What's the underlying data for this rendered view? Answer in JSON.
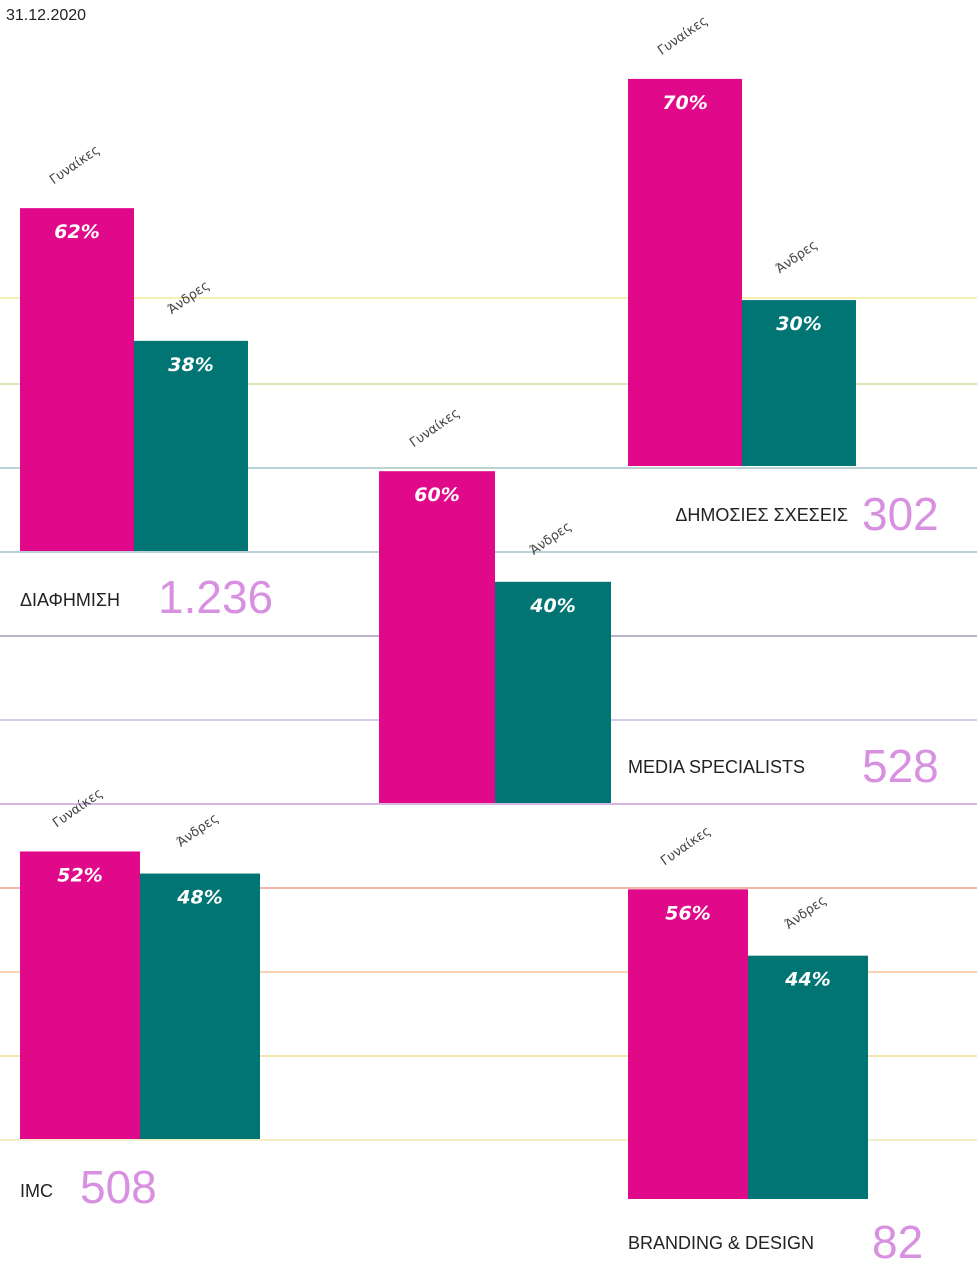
{
  "date": "31.12.2020",
  "chart_data": [
    {
      "type": "bar",
      "title": "ΔΙΑΦΗΜΙΣΗ",
      "total": {
        "value": 1236,
        "label": "1.236"
      },
      "categories": [
        "Γυναίκες",
        "Άνδρες"
      ],
      "values": [
        62,
        38
      ],
      "value_labels": [
        "62%",
        "38%"
      ],
      "colors": [
        "#e0098a",
        "#007574"
      ]
    },
    {
      "type": "bar",
      "title": "ΔΗΜΟΣΙΕΣ ΣΧΕΣΕΙΣ",
      "total": 302,
      "categories": [
        "Γυναίκες",
        "Άνδρες"
      ],
      "values": [
        70,
        30
      ],
      "value_labels": [
        "70%",
        "30%"
      ],
      "colors": [
        "#e0098a",
        "#007574"
      ]
    },
    {
      "type": "bar",
      "title": "MEDIA SPECIALISTS",
      "total": 528,
      "categories": [
        "Γυναίκες",
        "Άνδρες"
      ],
      "values": [
        60,
        40
      ],
      "value_labels": [
        "60%",
        "40%"
      ],
      "colors": [
        "#e0098a",
        "#007574"
      ]
    },
    {
      "type": "bar",
      "title": "IMC",
      "total": 508,
      "categories": [
        "Γυναίκες",
        "Άνδρες"
      ],
      "values": [
        52,
        48
      ],
      "value_labels": [
        "52%",
        "48%"
      ],
      "colors": [
        "#e0098a",
        "#007574"
      ]
    },
    {
      "type": "bar",
      "title": "BRANDING & DESIGN",
      "total": 82,
      "categories": [
        "Γυναίκες",
        "Άνδρες"
      ],
      "values": [
        56,
        44
      ],
      "value_labels": [
        "56%",
        "44%"
      ],
      "colors": [
        "#e0098a",
        "#007574"
      ]
    }
  ]
}
